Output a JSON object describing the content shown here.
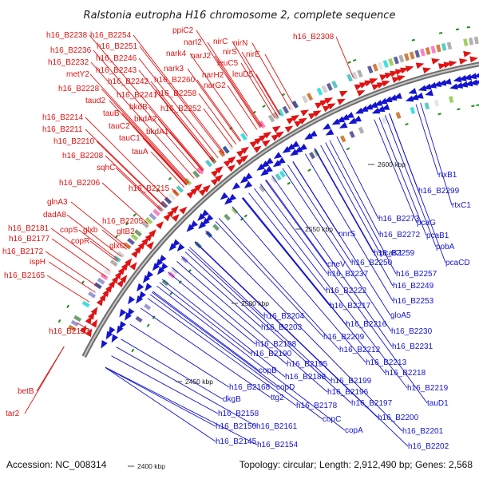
{
  "title": "Ralstonia eutropha H16 chromosome 2, complete sequence",
  "footer": {
    "accession": "Accession: NC_008314",
    "summary": "Topology: circular; Length: 2,912,490 bp; Genes: 2,568"
  },
  "colors": {
    "forward": "#e01414",
    "reverse": "#1414d0",
    "backbone": "#8c8c8c",
    "marker": "#1e8a1e"
  },
  "ticks": [
    "2600 kbp",
    "2550 kbp",
    "2500 kbp",
    "2450 kbp",
    "2400 kbp"
  ],
  "red_labels": [
    "h16_B2238",
    "h16_B2254",
    "ppiC2",
    "narI2",
    "nirC",
    "nirN",
    "h16_B2308",
    "h16_B2236",
    "h16_B2251",
    "nark4",
    "narJ2",
    "nirS",
    "nirE",
    "h16_B2232",
    "h16_B2246",
    "leuC5",
    "metY2",
    "h16_B2243",
    "nark3",
    "narH2",
    "leuD5",
    "h16_B2228",
    "h16_B2242",
    "h16_B2260",
    "narG2",
    "taud2",
    "h16_B2241",
    "h16_B2258",
    "tauB",
    "bkdB",
    "h16_B2252",
    "h16_B2214",
    "bkdA2",
    "tauC2",
    "h16_B2211",
    "bkdA1",
    "tauC1",
    "h16_B2210",
    "tauA",
    "h16_B2208",
    "sqhC",
    "h16_B2206",
    "h16_B2215",
    "glnA3",
    "dadA8",
    "h16_B2205",
    "h16_B2181",
    "copS",
    "glxb",
    "gltB2",
    "h16_B2177",
    "copR",
    "glxC",
    "h16_B2172",
    "ispH",
    "h16_B2165",
    "h16_B2153",
    "betB",
    "tar2"
  ],
  "blue_labels": [
    "rtxB1",
    "h16_B2299",
    "rtxC1",
    "h16_B2273",
    "pcaG",
    "nnrS",
    "h16_B2272",
    "pcaB1",
    "pobA",
    "pcaK1",
    "pcaCD",
    "h16_B2259",
    "cheV",
    "h16_B2250",
    "h16_B2237",
    "h16_B2257",
    "h16_B2249",
    "h16_B2222",
    "h16_B2217",
    "h16_B2253",
    "gloA5",
    "h16_B2204",
    "h16_B2216",
    "h16_B2203",
    "h16_B2209",
    "h16_B2230",
    "h16_B2198",
    "h16_B2212",
    "h16_B2231",
    "h16_B2190",
    "h16_B2213",
    "copB",
    "h16_B2195",
    "h16_B2218",
    "h16_B2188",
    "h16_B2199",
    "copD",
    "h16_B2196",
    "h16_B2219",
    "h16_B2168",
    "ttg2",
    "h16_B2197",
    "tauD1",
    "dkgB",
    "h16_B2178",
    "h16_B2158",
    "copC",
    "h16_B2200",
    "h16_B2150",
    "h16_B2161",
    "copA",
    "h16_B2201",
    "h16_B2145",
    "h16_B2154",
    "h16_B2202"
  ]
}
